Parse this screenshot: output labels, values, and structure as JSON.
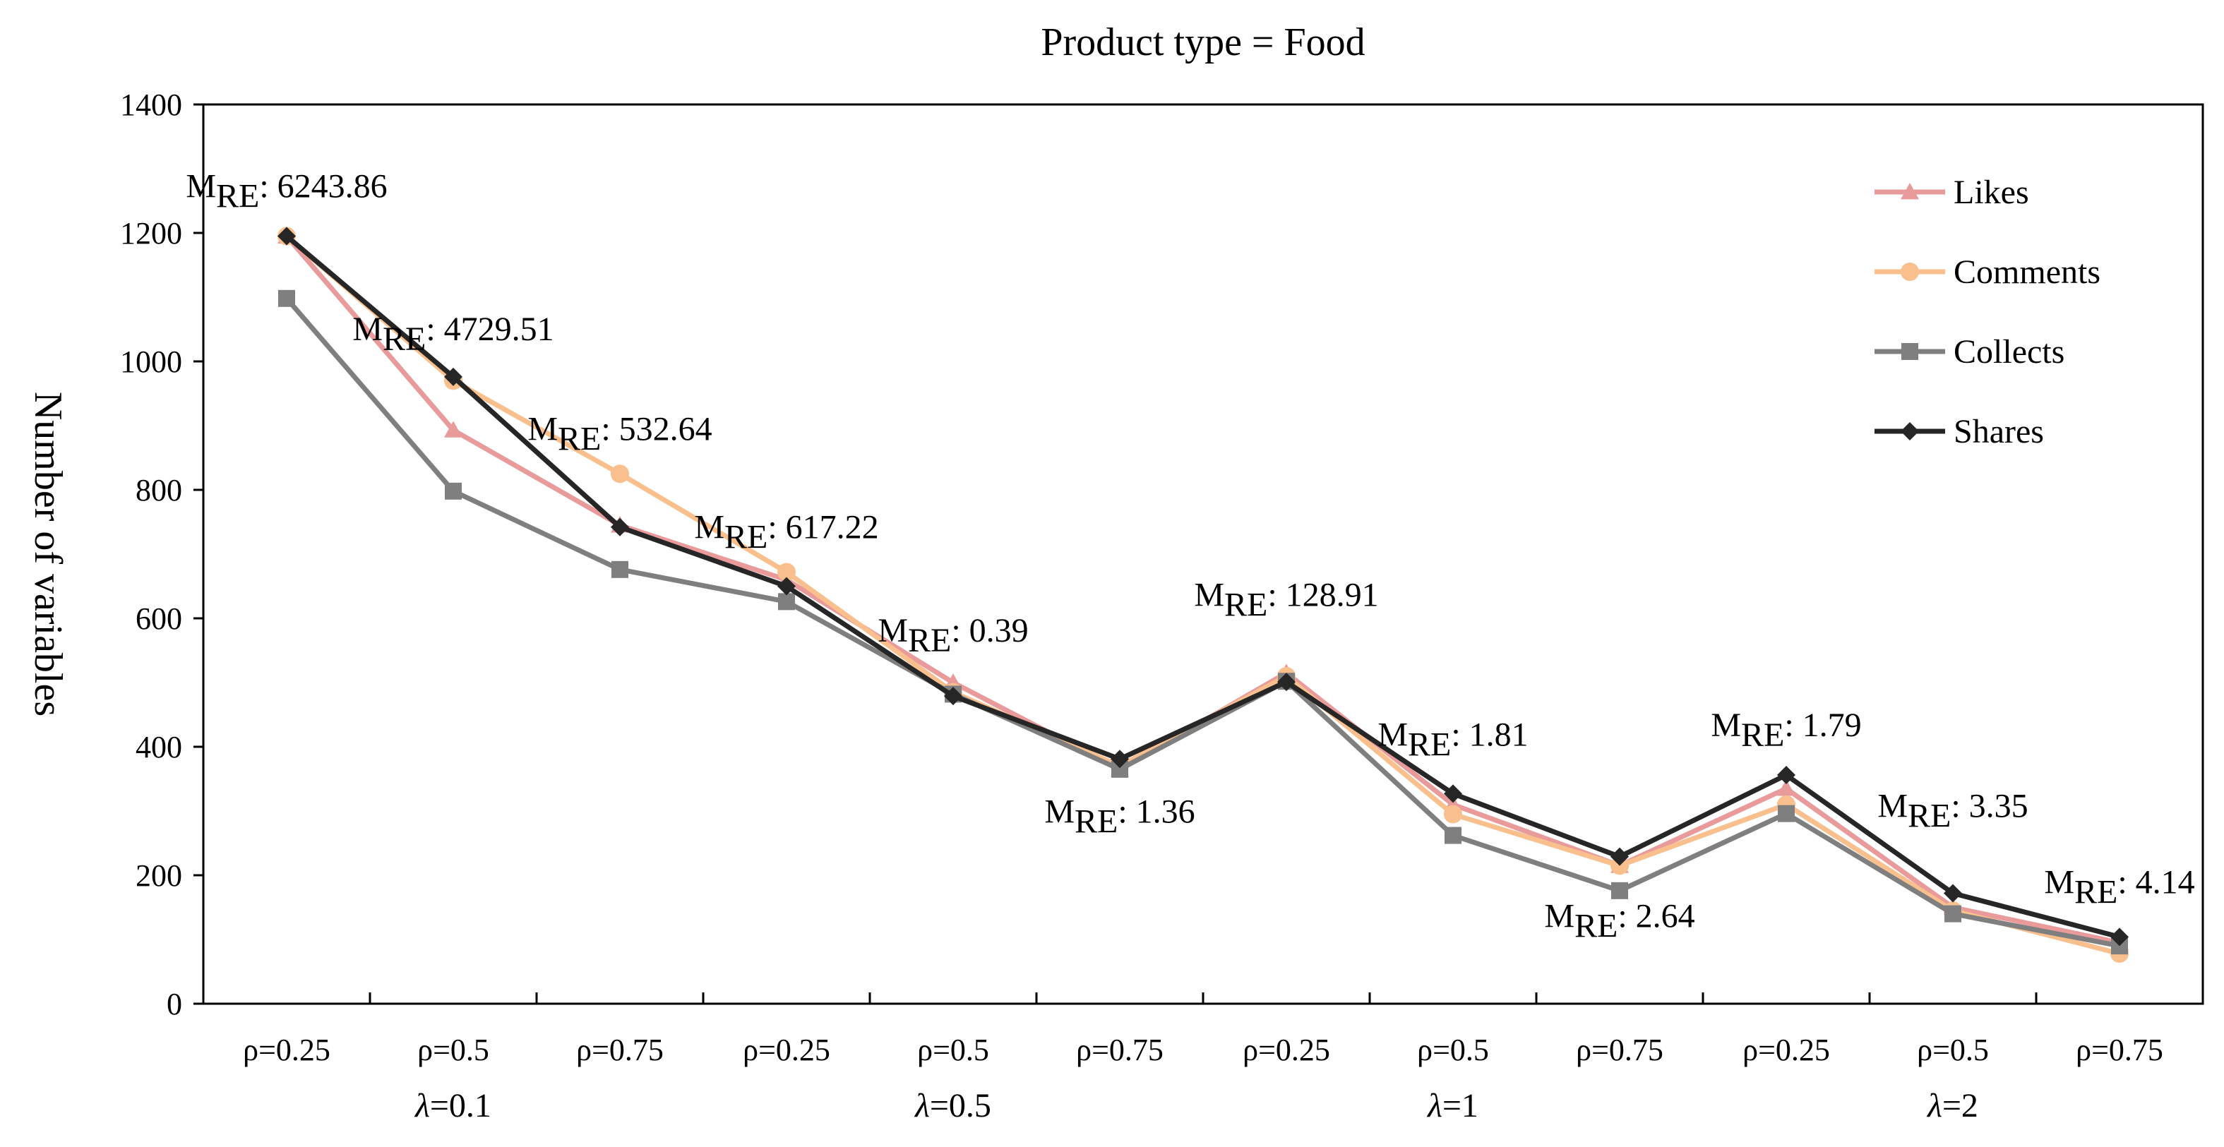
{
  "chart_data": {
    "type": "line",
    "title": "Product type = Food",
    "ylabel": "Number of variables",
    "xlabel": "",
    "ylim": [
      0,
      1400
    ],
    "yticks": [
      0,
      200,
      400,
      600,
      800,
      1000,
      1200,
      1400
    ],
    "categories": [
      "ρ=0.25",
      "ρ=0.5",
      "ρ=0.75",
      "ρ=0.25",
      "ρ=0.5",
      "ρ=0.75",
      "ρ=0.25",
      "ρ=0.5",
      "ρ=0.75",
      "ρ=0.25",
      "ρ=0.5",
      "ρ=0.75"
    ],
    "groups": [
      {
        "label_sym": "λ",
        "label_val": "=0.1",
        "span": [
          0,
          2
        ]
      },
      {
        "label_sym": "λ",
        "label_val": "=0.5",
        "span": [
          3,
          5
        ]
      },
      {
        "label_sym": "λ",
        "label_val": "=1",
        "span": [
          6,
          8
        ]
      },
      {
        "label_sym": "λ",
        "label_val": "=2",
        "span": [
          9,
          11
        ]
      }
    ],
    "legend_position": "top-right",
    "series": [
      {
        "name": "Likes",
        "color": "#E99A9A",
        "marker": "triangle",
        "values": [
          1195,
          893,
          745,
          660,
          500,
          365,
          515,
          310,
          215,
          335,
          150,
          95
        ]
      },
      {
        "name": "Comments",
        "color": "#F9BF8C",
        "marker": "circle",
        "values": [
          1195,
          970,
          825,
          672,
          485,
          370,
          510,
          295,
          215,
          310,
          145,
          78
        ]
      },
      {
        "name": "Collects",
        "color": "#7F7F7F",
        "marker": "square",
        "values": [
          1098,
          798,
          676,
          626,
          482,
          365,
          502,
          262,
          176,
          296,
          140,
          90
        ]
      },
      {
        "name": "Shares",
        "color": "#262626",
        "marker": "diamond",
        "values": [
          1195,
          976,
          742,
          650,
          479,
          381,
          501,
          327,
          229,
          356,
          172,
          104
        ]
      }
    ],
    "annotations": [
      {
        "prefix": "M",
        "sub": "RE",
        "text": ": 6243.86",
        "category_index": 0
      },
      {
        "prefix": "M",
        "sub": "RE",
        "text": ": 4729.51",
        "category_index": 1
      },
      {
        "prefix": "M",
        "sub": "RE",
        "text": ": 532.64",
        "category_index": 2
      },
      {
        "prefix": "M",
        "sub": "RE",
        "text": ": 617.22",
        "category_index": 3
      },
      {
        "prefix": "M",
        "sub": "RE",
        "text": ": 0.39",
        "category_index": 4
      },
      {
        "prefix": "M",
        "sub": "RE",
        "text": ": 1.36",
        "category_index": 5
      },
      {
        "prefix": "M",
        "sub": "RE",
        "text": ": 128.91",
        "category_index": 6
      },
      {
        "prefix": "M",
        "sub": "RE",
        "text": ": 1.81",
        "category_index": 7
      },
      {
        "prefix": "M",
        "sub": "RE",
        "text": ": 2.64",
        "category_index": 8
      },
      {
        "prefix": "M",
        "sub": "RE",
        "text": ": 1.79",
        "category_index": 9
      },
      {
        "prefix": "M",
        "sub": "RE",
        "text": ": 3.35",
        "category_index": 10
      },
      {
        "prefix": "M",
        "sub": "RE",
        "text": ": 4.14",
        "category_index": 11
      }
    ]
  }
}
